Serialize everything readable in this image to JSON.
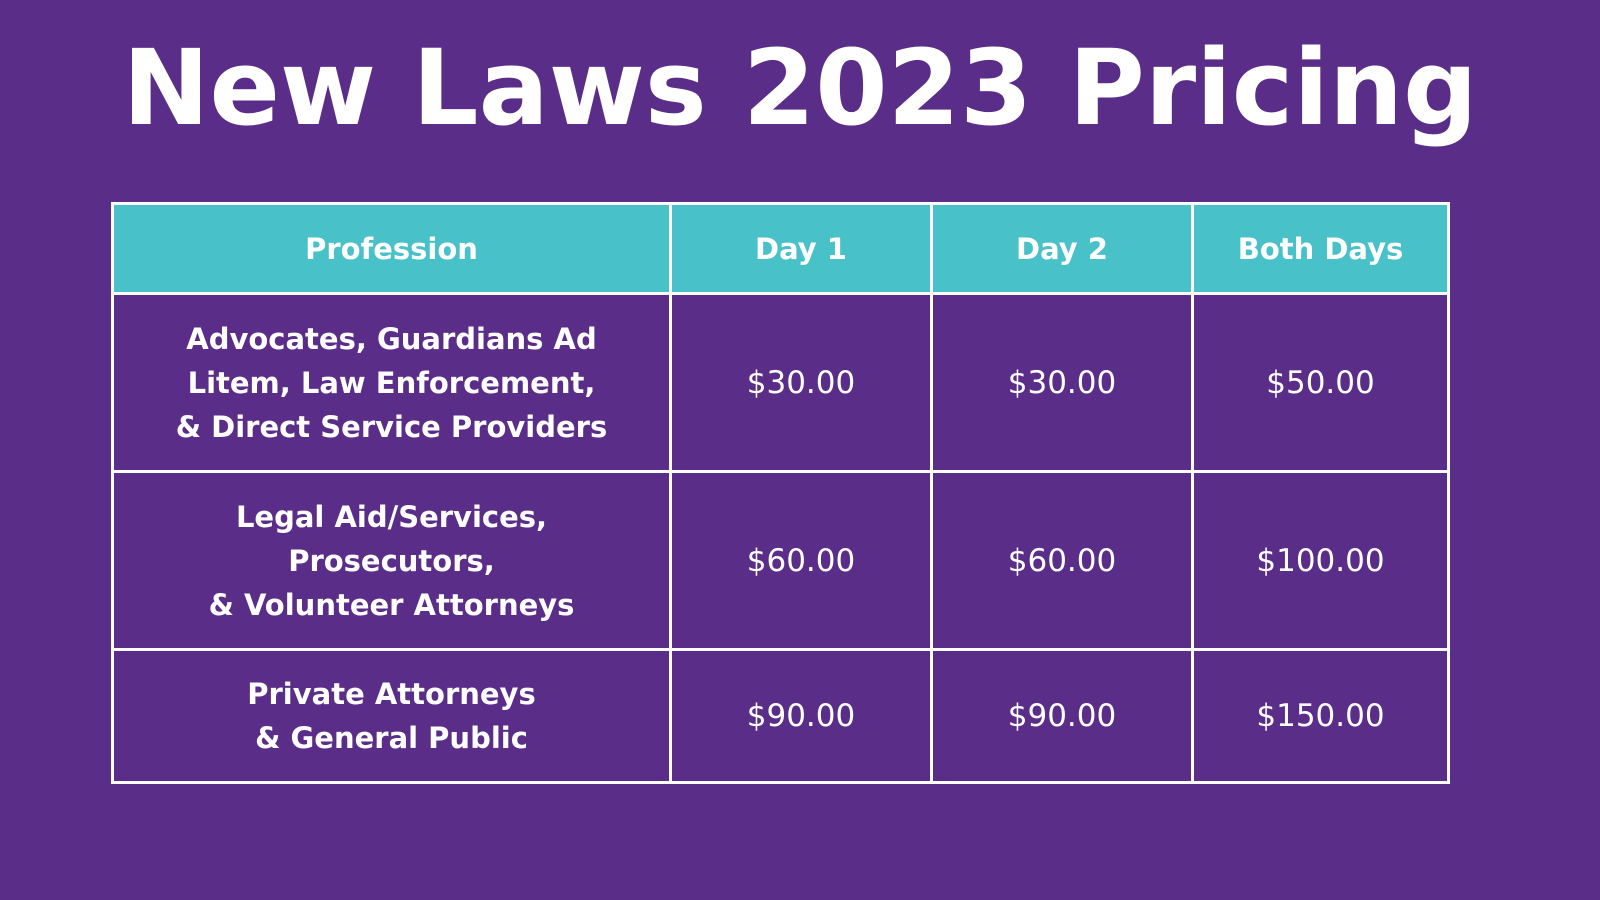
{
  "title": "New Laws 2023 Pricing",
  "colors": {
    "background": "#5a2d88",
    "header_background": "#48c1c8",
    "text": "#ffffff",
    "border": "#ffffff"
  },
  "table": {
    "headers": [
      "Profession",
      "Day 1",
      "Day 2",
      "Both Days"
    ],
    "rows": [
      {
        "profession_lines": [
          "Advocates, Guardians Ad",
          "Litem, Law Enforcement,",
          "& Direct Service Providers"
        ],
        "day1": "$30.00",
        "day2": "$30.00",
        "both": "$50.00"
      },
      {
        "profession_lines": [
          "Legal Aid/Services,",
          "Prosecutors,",
          "& Volunteer Attorneys"
        ],
        "day1": "$60.00",
        "day2": "$60.00",
        "both": "$100.00"
      },
      {
        "profession_lines": [
          "Private Attorneys",
          "& General Public"
        ],
        "day1": "$90.00",
        "day2": "$90.00",
        "both": "$150.00"
      }
    ]
  }
}
